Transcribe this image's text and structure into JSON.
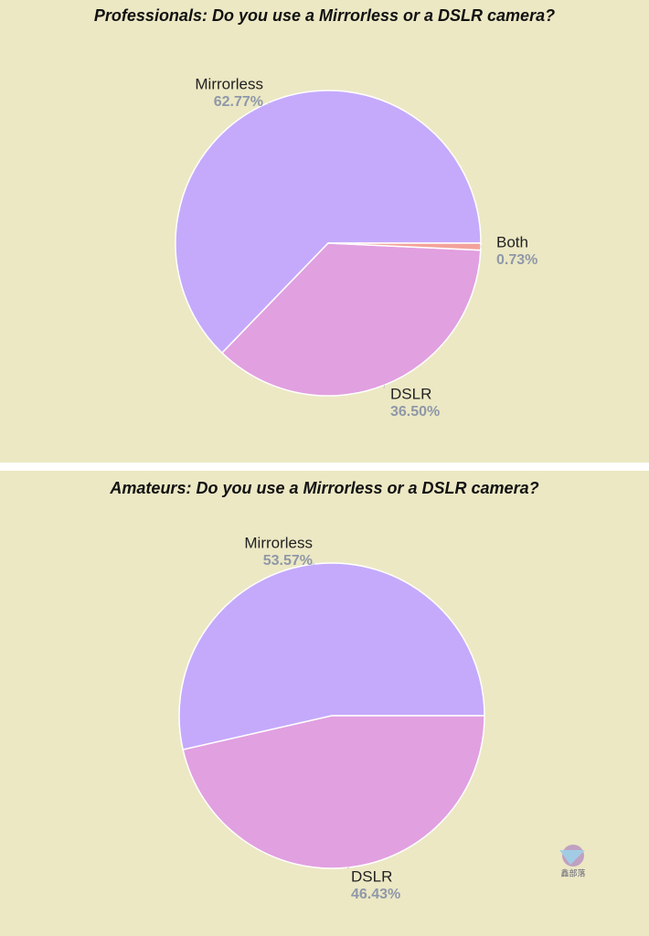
{
  "chart_data": [
    {
      "type": "pie",
      "title": "Professionals: Do you use a Mirrorless or a DSLR camera?",
      "categories": [
        "Mirrorless",
        "DSLR",
        "Both"
      ],
      "values": [
        62.77,
        36.5,
        0.73
      ],
      "value_labels": [
        "62.77%",
        "36.50%",
        "0.73%"
      ],
      "colors": [
        "#c5aafc",
        "#e1a0e0",
        "#f2a39b"
      ]
    },
    {
      "type": "pie",
      "title": "Amateurs: Do you use a Mirrorless or a DSLR camera?",
      "categories": [
        "Mirrorless",
        "DSLR"
      ],
      "values": [
        53.57,
        46.43
      ],
      "value_labels": [
        "53.57%",
        "46.43%"
      ],
      "colors": [
        "#c5aafc",
        "#e1a0e0"
      ]
    }
  ],
  "watermark": "鑫部落"
}
